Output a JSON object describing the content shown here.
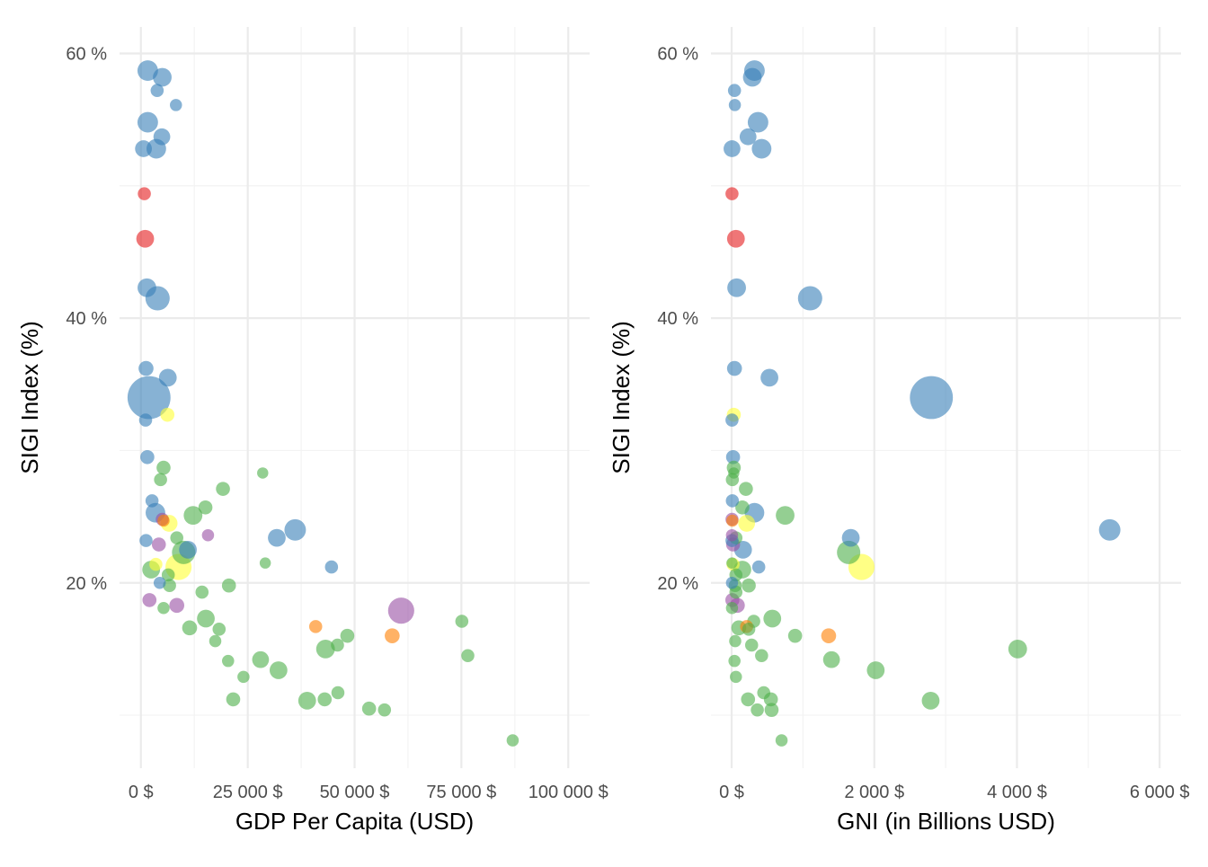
{
  "palette": {
    "blue": "#377eb8",
    "red": "#e41a1c",
    "green": "#4daf4a",
    "purple": "#984ea3",
    "orange": "#ff7f00",
    "yellow": "#ffff33"
  },
  "chart_data": [
    {
      "type": "scatter",
      "title": "",
      "xlabel": "GDP Per Capita (USD)",
      "ylabel": "SIGI Index (%)",
      "xlim": [
        -5000,
        105000
      ],
      "ylim": [
        6,
        62
      ],
      "x_ticks": [
        0,
        25000,
        50000,
        75000,
        100000
      ],
      "x_tick_labels": [
        "0 $",
        "25 000 $",
        "50 000 $",
        "75 000 $",
        "100 000 $"
      ],
      "y_ticks": [
        20,
        40,
        60
      ],
      "y_tick_labels": [
        "20 %",
        "40 %",
        "60 %"
      ],
      "grid": true,
      "legend": "none",
      "points": [
        {
          "x": 1600,
          "y": 58.7,
          "s": 2.2,
          "c": "blue"
        },
        {
          "x": 5000,
          "y": 58.2,
          "s": 2.0,
          "c": "blue"
        },
        {
          "x": 3800,
          "y": 57.2,
          "s": 1.4,
          "c": "blue"
        },
        {
          "x": 8200,
          "y": 56.1,
          "s": 1.3,
          "c": "blue"
        },
        {
          "x": 1600,
          "y": 54.8,
          "s": 2.2,
          "c": "blue"
        },
        {
          "x": 4900,
          "y": 53.7,
          "s": 1.8,
          "c": "blue"
        },
        {
          "x": 600,
          "y": 52.8,
          "s": 1.8,
          "c": "blue"
        },
        {
          "x": 3600,
          "y": 52.8,
          "s": 2.1,
          "c": "blue"
        },
        {
          "x": 800,
          "y": 49.4,
          "s": 1.4,
          "c": "red"
        },
        {
          "x": 1000,
          "y": 46.0,
          "s": 1.9,
          "c": "red"
        },
        {
          "x": 1400,
          "y": 42.3,
          "s": 2.0,
          "c": "blue"
        },
        {
          "x": 3900,
          "y": 41.5,
          "s": 2.6,
          "c": "blue"
        },
        {
          "x": 1200,
          "y": 36.2,
          "s": 1.6,
          "c": "blue"
        },
        {
          "x": 6300,
          "y": 35.5,
          "s": 1.9,
          "c": "blue"
        },
        {
          "x": 1900,
          "y": 34.0,
          "s": 4.6,
          "c": "blue"
        },
        {
          "x": 6200,
          "y": 32.7,
          "s": 1.5,
          "c": "yellow"
        },
        {
          "x": 1100,
          "y": 32.3,
          "s": 1.4,
          "c": "blue"
        },
        {
          "x": 1500,
          "y": 29.5,
          "s": 1.5,
          "c": "blue"
        },
        {
          "x": 5300,
          "y": 28.7,
          "s": 1.5,
          "c": "green"
        },
        {
          "x": 28500,
          "y": 28.3,
          "s": 1.2,
          "c": "green"
        },
        {
          "x": 4600,
          "y": 27.8,
          "s": 1.4,
          "c": "green"
        },
        {
          "x": 19200,
          "y": 27.1,
          "s": 1.5,
          "c": "green"
        },
        {
          "x": 2600,
          "y": 26.2,
          "s": 1.4,
          "c": "blue"
        },
        {
          "x": 15100,
          "y": 25.7,
          "s": 1.5,
          "c": "green"
        },
        {
          "x": 3400,
          "y": 25.3,
          "s": 2.1,
          "c": "blue"
        },
        {
          "x": 12200,
          "y": 25.1,
          "s": 2.0,
          "c": "green"
        },
        {
          "x": 5000,
          "y": 24.8,
          "s": 1.4,
          "c": "purple"
        },
        {
          "x": 5300,
          "y": 24.7,
          "s": 1.3,
          "c": "orange"
        },
        {
          "x": 6600,
          "y": 24.5,
          "s": 1.8,
          "c": "yellow"
        },
        {
          "x": 36100,
          "y": 24.0,
          "s": 2.3,
          "c": "blue"
        },
        {
          "x": 15700,
          "y": 23.6,
          "s": 1.3,
          "c": "purple"
        },
        {
          "x": 31800,
          "y": 23.4,
          "s": 1.9,
          "c": "blue"
        },
        {
          "x": 8400,
          "y": 23.4,
          "s": 1.4,
          "c": "green"
        },
        {
          "x": 1200,
          "y": 23.2,
          "s": 1.4,
          "c": "blue"
        },
        {
          "x": 4200,
          "y": 22.9,
          "s": 1.5,
          "c": "purple"
        },
        {
          "x": 11000,
          "y": 22.5,
          "s": 1.9,
          "c": "blue"
        },
        {
          "x": 10000,
          "y": 22.3,
          "s": 2.5,
          "c": "green"
        },
        {
          "x": 29100,
          "y": 21.5,
          "s": 1.2,
          "c": "green"
        },
        {
          "x": 3500,
          "y": 21.4,
          "s": 1.4,
          "c": "yellow"
        },
        {
          "x": 8800,
          "y": 21.2,
          "s": 2.8,
          "c": "yellow"
        },
        {
          "x": 44600,
          "y": 21.2,
          "s": 1.4,
          "c": "blue"
        },
        {
          "x": 2400,
          "y": 21.0,
          "s": 1.9,
          "c": "green"
        },
        {
          "x": 6400,
          "y": 20.6,
          "s": 1.4,
          "c": "green"
        },
        {
          "x": 4400,
          "y": 20.0,
          "s": 1.3,
          "c": "blue"
        },
        {
          "x": 20600,
          "y": 19.8,
          "s": 1.5,
          "c": "green"
        },
        {
          "x": 6700,
          "y": 19.8,
          "s": 1.4,
          "c": "green"
        },
        {
          "x": 14300,
          "y": 19.3,
          "s": 1.4,
          "c": "green"
        },
        {
          "x": 2000,
          "y": 18.7,
          "s": 1.5,
          "c": "purple"
        },
        {
          "x": 8400,
          "y": 18.3,
          "s": 1.6,
          "c": "purple"
        },
        {
          "x": 5300,
          "y": 18.1,
          "s": 1.3,
          "c": "green"
        },
        {
          "x": 60900,
          "y": 17.9,
          "s": 2.8,
          "c": "purple"
        },
        {
          "x": 15200,
          "y": 17.3,
          "s": 1.9,
          "c": "green"
        },
        {
          "x": 75100,
          "y": 17.1,
          "s": 1.4,
          "c": "green"
        },
        {
          "x": 40900,
          "y": 16.7,
          "s": 1.4,
          "c": "orange"
        },
        {
          "x": 11400,
          "y": 16.6,
          "s": 1.6,
          "c": "green"
        },
        {
          "x": 18300,
          "y": 16.5,
          "s": 1.4,
          "c": "green"
        },
        {
          "x": 48300,
          "y": 16.0,
          "s": 1.5,
          "c": "green"
        },
        {
          "x": 58800,
          "y": 16.0,
          "s": 1.6,
          "c": "orange"
        },
        {
          "x": 17400,
          "y": 15.6,
          "s": 1.3,
          "c": "green"
        },
        {
          "x": 46000,
          "y": 15.3,
          "s": 1.4,
          "c": "green"
        },
        {
          "x": 43200,
          "y": 15.0,
          "s": 2.0,
          "c": "green"
        },
        {
          "x": 76500,
          "y": 14.5,
          "s": 1.4,
          "c": "green"
        },
        {
          "x": 28000,
          "y": 14.2,
          "s": 1.8,
          "c": "green"
        },
        {
          "x": 20400,
          "y": 14.1,
          "s": 1.3,
          "c": "green"
        },
        {
          "x": 32200,
          "y": 13.4,
          "s": 1.9,
          "c": "green"
        },
        {
          "x": 24000,
          "y": 12.9,
          "s": 1.3,
          "c": "green"
        },
        {
          "x": 46100,
          "y": 11.7,
          "s": 1.4,
          "c": "green"
        },
        {
          "x": 21600,
          "y": 11.2,
          "s": 1.5,
          "c": "green"
        },
        {
          "x": 43000,
          "y": 11.2,
          "s": 1.5,
          "c": "green"
        },
        {
          "x": 38900,
          "y": 11.1,
          "s": 1.9,
          "c": "green"
        },
        {
          "x": 53400,
          "y": 10.5,
          "s": 1.5,
          "c": "green"
        },
        {
          "x": 57000,
          "y": 10.4,
          "s": 1.4,
          "c": "green"
        },
        {
          "x": 87000,
          "y": 8.1,
          "s": 1.3,
          "c": "green"
        }
      ]
    },
    {
      "type": "scatter",
      "title": "",
      "xlabel": "GNI (in Billions USD)",
      "ylabel": "SIGI Index (%)",
      "xlim": [
        -290,
        6300
      ],
      "ylim": [
        6,
        62
      ],
      "x_ticks": [
        0,
        2000,
        4000,
        6000
      ],
      "x_tick_labels": [
        "0 $",
        "2 000 $",
        "4 000 $",
        "6 000 $"
      ],
      "y_ticks": [
        20,
        40,
        60
      ],
      "y_tick_labels": [
        "20 %",
        "40 %",
        "60 %"
      ],
      "grid": true,
      "legend": "none",
      "points": [
        {
          "x": 320,
          "y": 58.7,
          "s": 2.2,
          "c": "blue"
        },
        {
          "x": 290,
          "y": 58.2,
          "s": 2.0,
          "c": "blue"
        },
        {
          "x": 40,
          "y": 57.2,
          "s": 1.4,
          "c": "blue"
        },
        {
          "x": 45,
          "y": 56.1,
          "s": 1.3,
          "c": "blue"
        },
        {
          "x": 370,
          "y": 54.8,
          "s": 2.2,
          "c": "blue"
        },
        {
          "x": 230,
          "y": 53.7,
          "s": 1.8,
          "c": "blue"
        },
        {
          "x": 5,
          "y": 52.8,
          "s": 1.8,
          "c": "blue"
        },
        {
          "x": 420,
          "y": 52.8,
          "s": 2.1,
          "c": "blue"
        },
        {
          "x": 5,
          "y": 49.4,
          "s": 1.4,
          "c": "red"
        },
        {
          "x": 60,
          "y": 46.0,
          "s": 1.9,
          "c": "red"
        },
        {
          "x": 70,
          "y": 42.3,
          "s": 2.0,
          "c": "blue"
        },
        {
          "x": 1100,
          "y": 41.5,
          "s": 2.6,
          "c": "blue"
        },
        {
          "x": 40,
          "y": 36.2,
          "s": 1.6,
          "c": "blue"
        },
        {
          "x": 530,
          "y": 35.5,
          "s": 1.9,
          "c": "blue"
        },
        {
          "x": 2800,
          "y": 34.0,
          "s": 4.6,
          "c": "blue"
        },
        {
          "x": 30,
          "y": 32.7,
          "s": 1.5,
          "c": "yellow"
        },
        {
          "x": 5,
          "y": 32.3,
          "s": 1.4,
          "c": "blue"
        },
        {
          "x": 20,
          "y": 29.5,
          "s": 1.5,
          "c": "blue"
        },
        {
          "x": 30,
          "y": 28.7,
          "s": 1.5,
          "c": "green"
        },
        {
          "x": 30,
          "y": 28.3,
          "s": 1.2,
          "c": "green"
        },
        {
          "x": 10,
          "y": 27.8,
          "s": 1.4,
          "c": "green"
        },
        {
          "x": 200,
          "y": 27.1,
          "s": 1.5,
          "c": "green"
        },
        {
          "x": 10,
          "y": 26.2,
          "s": 1.4,
          "c": "blue"
        },
        {
          "x": 150,
          "y": 25.7,
          "s": 1.5,
          "c": "green"
        },
        {
          "x": 320,
          "y": 25.3,
          "s": 2.1,
          "c": "blue"
        },
        {
          "x": 750,
          "y": 25.1,
          "s": 2.0,
          "c": "green"
        },
        {
          "x": 5,
          "y": 24.8,
          "s": 1.4,
          "c": "purple"
        },
        {
          "x": 10,
          "y": 24.7,
          "s": 1.3,
          "c": "orange"
        },
        {
          "x": 210,
          "y": 24.5,
          "s": 1.8,
          "c": "yellow"
        },
        {
          "x": 5300,
          "y": 24.0,
          "s": 2.3,
          "c": "blue"
        },
        {
          "x": 5,
          "y": 23.6,
          "s": 1.3,
          "c": "purple"
        },
        {
          "x": 1670,
          "y": 23.4,
          "s": 1.9,
          "c": "blue"
        },
        {
          "x": 60,
          "y": 23.4,
          "s": 1.4,
          "c": "green"
        },
        {
          "x": 5,
          "y": 23.2,
          "s": 1.4,
          "c": "blue"
        },
        {
          "x": 20,
          "y": 22.9,
          "s": 1.5,
          "c": "purple"
        },
        {
          "x": 160,
          "y": 22.5,
          "s": 1.9,
          "c": "blue"
        },
        {
          "x": 1640,
          "y": 22.3,
          "s": 2.5,
          "c": "green"
        },
        {
          "x": 5,
          "y": 21.5,
          "s": 1.2,
          "c": "green"
        },
        {
          "x": 20,
          "y": 21.4,
          "s": 1.4,
          "c": "yellow"
        },
        {
          "x": 1820,
          "y": 21.2,
          "s": 2.8,
          "c": "yellow"
        },
        {
          "x": 380,
          "y": 21.2,
          "s": 1.4,
          "c": "blue"
        },
        {
          "x": 150,
          "y": 21.0,
          "s": 1.9,
          "c": "green"
        },
        {
          "x": 60,
          "y": 20.6,
          "s": 1.4,
          "c": "green"
        },
        {
          "x": 5,
          "y": 20.0,
          "s": 1.3,
          "c": "blue"
        },
        {
          "x": 240,
          "y": 19.8,
          "s": 1.5,
          "c": "green"
        },
        {
          "x": 50,
          "y": 19.8,
          "s": 1.4,
          "c": "green"
        },
        {
          "x": 60,
          "y": 19.3,
          "s": 1.4,
          "c": "green"
        },
        {
          "x": 10,
          "y": 18.7,
          "s": 1.5,
          "c": "purple"
        },
        {
          "x": 80,
          "y": 18.3,
          "s": 1.6,
          "c": "purple"
        },
        {
          "x": 5,
          "y": 18.1,
          "s": 1.3,
          "c": "green"
        },
        {
          "x": 570,
          "y": 17.3,
          "s": 1.9,
          "c": "green"
        },
        {
          "x": 310,
          "y": 17.1,
          "s": 1.4,
          "c": "green"
        },
        {
          "x": 210,
          "y": 16.7,
          "s": 1.4,
          "c": "orange"
        },
        {
          "x": 100,
          "y": 16.6,
          "s": 1.6,
          "c": "green"
        },
        {
          "x": 240,
          "y": 16.5,
          "s": 1.4,
          "c": "green"
        },
        {
          "x": 890,
          "y": 16.0,
          "s": 1.5,
          "c": "green"
        },
        {
          "x": 1360,
          "y": 16.0,
          "s": 1.6,
          "c": "orange"
        },
        {
          "x": 50,
          "y": 15.6,
          "s": 1.3,
          "c": "green"
        },
        {
          "x": 280,
          "y": 15.3,
          "s": 1.4,
          "c": "green"
        },
        {
          "x": 4010,
          "y": 15.0,
          "s": 2.0,
          "c": "green"
        },
        {
          "x": 420,
          "y": 14.5,
          "s": 1.4,
          "c": "green"
        },
        {
          "x": 1400,
          "y": 14.2,
          "s": 1.8,
          "c": "green"
        },
        {
          "x": 40,
          "y": 14.1,
          "s": 1.3,
          "c": "green"
        },
        {
          "x": 2020,
          "y": 13.4,
          "s": 1.9,
          "c": "green"
        },
        {
          "x": 60,
          "y": 12.9,
          "s": 1.3,
          "c": "green"
        },
        {
          "x": 450,
          "y": 11.7,
          "s": 1.4,
          "c": "green"
        },
        {
          "x": 230,
          "y": 11.2,
          "s": 1.5,
          "c": "green"
        },
        {
          "x": 550,
          "y": 11.2,
          "s": 1.5,
          "c": "green"
        },
        {
          "x": 2790,
          "y": 11.1,
          "s": 1.9,
          "c": "green"
        },
        {
          "x": 360,
          "y": 10.4,
          "s": 1.4,
          "c": "green"
        },
        {
          "x": 560,
          "y": 10.4,
          "s": 1.5,
          "c": "green"
        },
        {
          "x": 700,
          "y": 8.1,
          "s": 1.3,
          "c": "green"
        }
      ]
    }
  ]
}
